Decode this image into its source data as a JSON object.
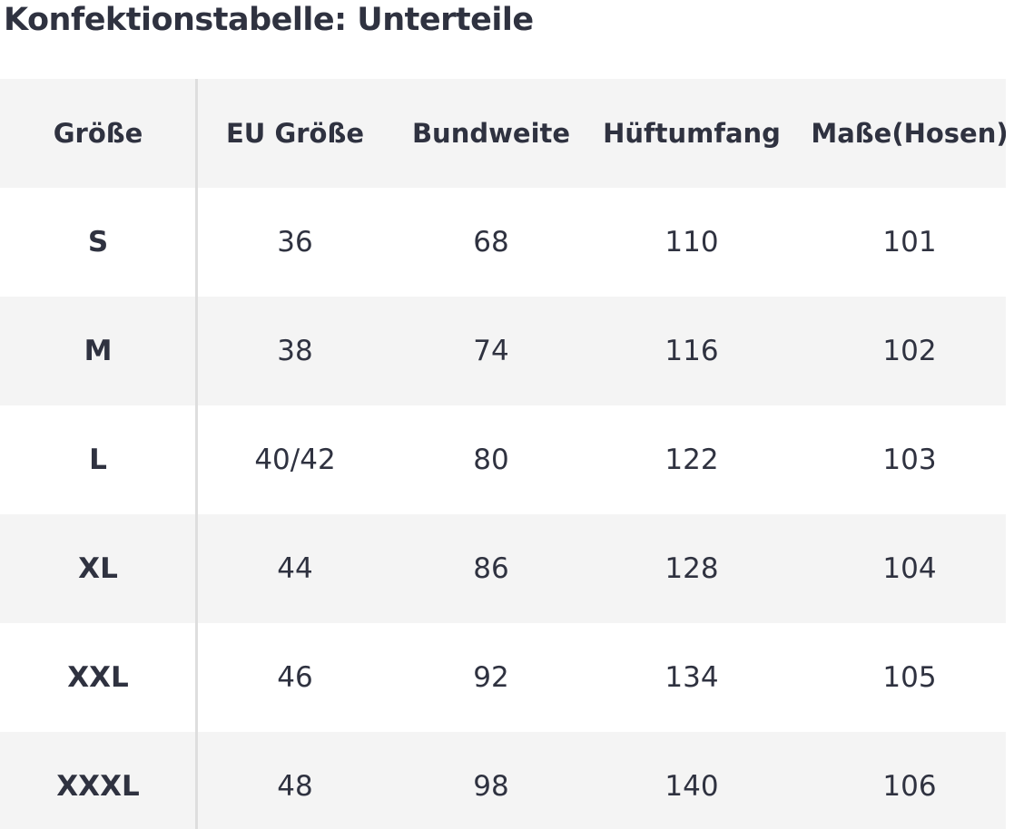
{
  "title": "Konfektionstabelle: Unterteile",
  "table": {
    "header": [
      "Größe",
      "EU Größe",
      "Bundweite",
      "Hüftumfang",
      "Maße(Hosen)"
    ],
    "rows": [
      [
        "S",
        36,
        68,
        110,
        101
      ],
      [
        "M",
        38,
        74,
        116,
        102
      ],
      [
        "L",
        "40/42",
        80,
        122,
        103
      ],
      [
        "XL",
        44,
        86,
        128,
        104
      ],
      [
        "XXL",
        46,
        92,
        134,
        105
      ],
      [
        "XXXL",
        48,
        98,
        140,
        106
      ]
    ]
  }
}
